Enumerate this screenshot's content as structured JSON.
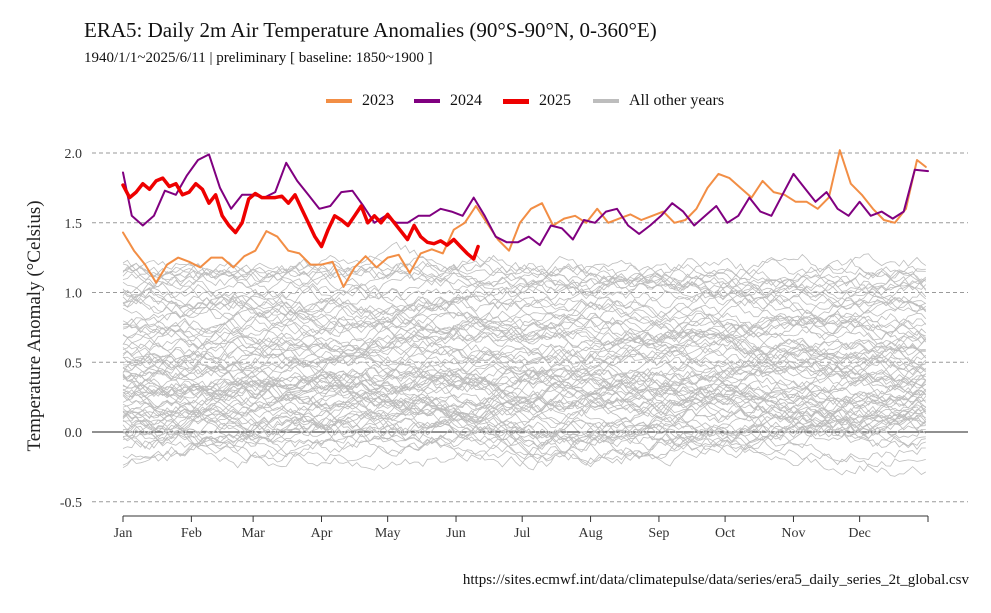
{
  "chart_data": {
    "type": "line",
    "title": "ERA5: Daily 2m Air Temperature Anomalies (90°S-90°N, 0-360°E)",
    "subtitle": "1940/1/1~2025/6/11 | preliminary   [ baseline: 1850~1900 ]",
    "xlabel": "",
    "ylabel": "Temperature Anomaly (°Celsius)",
    "ylim": [
      -0.5,
      2.0
    ],
    "yticks": [
      "-0.5",
      "0.0",
      "0.5",
      "1.0",
      "1.5",
      "2.0"
    ],
    "xlim": [
      1,
      366
    ],
    "xticks": [
      {
        "label": "Jan",
        "day": 1
      },
      {
        "label": "Feb",
        "day": 32
      },
      {
        "label": "Mar",
        "day": 60
      },
      {
        "label": "Apr",
        "day": 91
      },
      {
        "label": "May",
        "day": 121
      },
      {
        "label": "Jun",
        "day": 152
      },
      {
        "label": "Jul",
        "day": 182
      },
      {
        "label": "Aug",
        "day": 213
      },
      {
        "label": "Sep",
        "day": 244
      },
      {
        "label": "Oct",
        "day": 274
      },
      {
        "label": "Nov",
        "day": 305
      },
      {
        "label": "Dec",
        "day": 335
      }
    ],
    "grid": "horizontal dashed",
    "legend_position": "top",
    "series": [
      {
        "name": "2023",
        "color": "#f28e45",
        "width": 2,
        "x": [
          1,
          6,
          11,
          16,
          21,
          26,
          31,
          36,
          41,
          46,
          51,
          56,
          61,
          66,
          71,
          76,
          81,
          86,
          91,
          96,
          101,
          106,
          111,
          116,
          121,
          126,
          131,
          136,
          141,
          146,
          151,
          156,
          161,
          166,
          171,
          176,
          181,
          186,
          191,
          196,
          201,
          206,
          211,
          216,
          221,
          226,
          231,
          236,
          241,
          246,
          251,
          256,
          261,
          266,
          271,
          276,
          281,
          286,
          291,
          296,
          301,
          306,
          311,
          316,
          321,
          326,
          331,
          336,
          341,
          346,
          351,
          356,
          361,
          365
        ],
        "y": [
          1.43,
          1.3,
          1.2,
          1.07,
          1.2,
          1.25,
          1.22,
          1.18,
          1.25,
          1.25,
          1.18,
          1.26,
          1.3,
          1.44,
          1.4,
          1.3,
          1.28,
          1.2,
          1.2,
          1.22,
          1.04,
          1.18,
          1.26,
          1.18,
          1.25,
          1.27,
          1.14,
          1.28,
          1.31,
          1.28,
          1.45,
          1.5,
          1.62,
          1.5,
          1.38,
          1.3,
          1.5,
          1.6,
          1.64,
          1.48,
          1.53,
          1.55,
          1.5,
          1.6,
          1.5,
          1.53,
          1.56,
          1.52,
          1.55,
          1.58,
          1.5,
          1.52,
          1.6,
          1.75,
          1.85,
          1.82,
          1.75,
          1.68,
          1.8,
          1.72,
          1.7,
          1.65,
          1.65,
          1.6,
          1.68,
          2.02,
          1.78,
          1.7,
          1.6,
          1.52,
          1.5,
          1.6,
          1.95,
          1.9
        ]
      },
      {
        "name": "2024",
        "color": "#800080",
        "width": 2,
        "x": [
          1,
          5,
          10,
          15,
          20,
          25,
          30,
          35,
          40,
          45,
          50,
          55,
          60,
          65,
          70,
          75,
          80,
          85,
          90,
          95,
          100,
          105,
          110,
          115,
          120,
          125,
          130,
          135,
          140,
          145,
          150,
          155,
          160,
          165,
          170,
          175,
          180,
          185,
          190,
          195,
          200,
          205,
          210,
          215,
          220,
          225,
          230,
          235,
          240,
          245,
          250,
          255,
          260,
          265,
          270,
          275,
          280,
          285,
          290,
          295,
          300,
          305,
          310,
          315,
          320,
          325,
          330,
          335,
          340,
          345,
          350,
          355,
          360,
          366
        ],
        "y": [
          1.86,
          1.55,
          1.48,
          1.55,
          1.73,
          1.7,
          1.84,
          1.95,
          1.99,
          1.75,
          1.6,
          1.7,
          1.7,
          1.68,
          1.72,
          1.93,
          1.8,
          1.7,
          1.6,
          1.62,
          1.72,
          1.73,
          1.62,
          1.5,
          1.55,
          1.5,
          1.5,
          1.55,
          1.55,
          1.6,
          1.58,
          1.55,
          1.68,
          1.55,
          1.4,
          1.36,
          1.36,
          1.4,
          1.34,
          1.48,
          1.46,
          1.38,
          1.52,
          1.5,
          1.58,
          1.6,
          1.48,
          1.42,
          1.48,
          1.55,
          1.64,
          1.58,
          1.48,
          1.55,
          1.62,
          1.5,
          1.55,
          1.68,
          1.58,
          1.55,
          1.7,
          1.85,
          1.75,
          1.65,
          1.72,
          1.6,
          1.55,
          1.65,
          1.55,
          1.58,
          1.53,
          1.58,
          1.88,
          1.87
        ]
      },
      {
        "name": "2025",
        "color": "#ee0000",
        "width": 3.5,
        "x": [
          1,
          4,
          7,
          10,
          13,
          16,
          19,
          22,
          25,
          28,
          31,
          34,
          37,
          40,
          43,
          46,
          49,
          52,
          55,
          58,
          61,
          64,
          67,
          70,
          73,
          76,
          79,
          82,
          85,
          88,
          91,
          94,
          97,
          100,
          103,
          106,
          109,
          112,
          115,
          118,
          121,
          124,
          127,
          130,
          133,
          136,
          139,
          142,
          145,
          148,
          151,
          154,
          157,
          160,
          162
        ],
        "y": [
          1.77,
          1.68,
          1.72,
          1.78,
          1.74,
          1.8,
          1.82,
          1.76,
          1.78,
          1.7,
          1.72,
          1.78,
          1.74,
          1.64,
          1.7,
          1.55,
          1.48,
          1.43,
          1.5,
          1.67,
          1.71,
          1.68,
          1.68,
          1.68,
          1.69,
          1.64,
          1.7,
          1.6,
          1.5,
          1.4,
          1.33,
          1.45,
          1.55,
          1.52,
          1.48,
          1.55,
          1.62,
          1.5,
          1.55,
          1.5,
          1.56,
          1.5,
          1.44,
          1.38,
          1.48,
          1.4,
          1.36,
          1.35,
          1.37,
          1.34,
          1.38,
          1.33,
          1.28,
          1.24,
          1.33
        ]
      },
      {
        "name": "All other years",
        "color": "#bdbdbd",
        "width": 1
      }
    ]
  },
  "source": "https://sites.ecmwf.int/data/climatepulse/data/series/era5_daily_series_2t_global.csv"
}
